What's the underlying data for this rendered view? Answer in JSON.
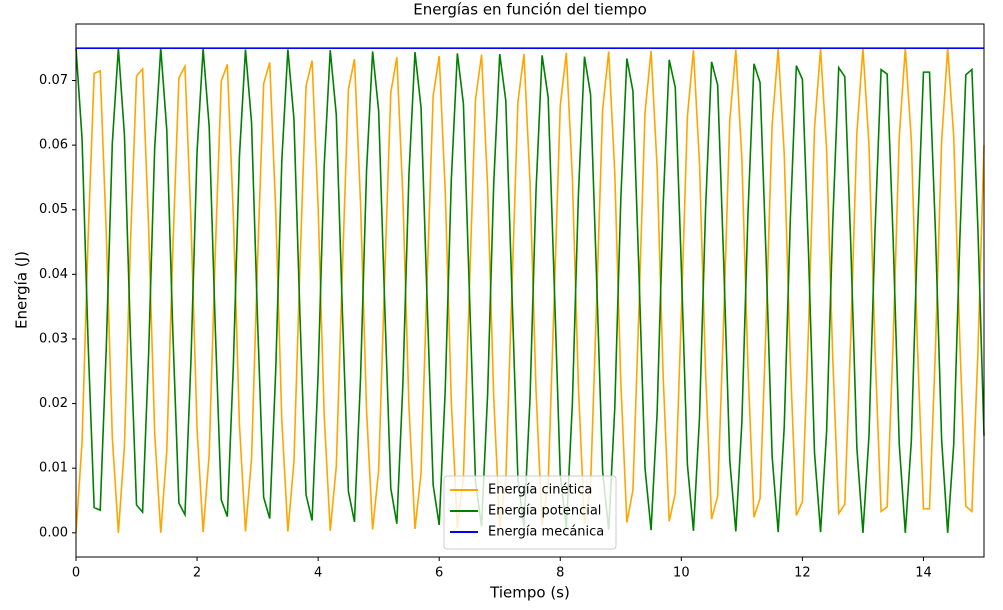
{
  "chart_data": {
    "type": "line",
    "title": "Energías en función del tiempo",
    "xlabel": "Tiempo (s)",
    "ylabel": "Energía (J)",
    "x": [
      0,
      0.1,
      0.2,
      0.3,
      0.4,
      0.5,
      0.6,
      0.7,
      0.8,
      0.9,
      1,
      1.1,
      1.2,
      1.3,
      1.4,
      1.5,
      1.6,
      1.7,
      1.8,
      1.9,
      2,
      2.1,
      2.2,
      2.3,
      2.4,
      2.5,
      2.6,
      2.7,
      2.8,
      2.9,
      3,
      3.1,
      3.2,
      3.3,
      3.4,
      3.5,
      3.6,
      3.7,
      3.8,
      3.9,
      4,
      4.1,
      4.2,
      4.3,
      4.4,
      4.5,
      4.6,
      4.7,
      4.8,
      4.9,
      5,
      5.1,
      5.2,
      5.3,
      5.4,
      5.5,
      5.6,
      5.7,
      5.8,
      5.9,
      6,
      6.1,
      6.2,
      6.3,
      6.4,
      6.5,
      6.6,
      6.7,
      6.8,
      6.9,
      7,
      7.1,
      7.2,
      7.3,
      7.4,
      7.5,
      7.6,
      7.7,
      7.8,
      7.9,
      8,
      8.1,
      8.2,
      8.3,
      8.4,
      8.5,
      8.6,
      8.7,
      8.8,
      8.9,
      9,
      9.1,
      9.2,
      9.3,
      9.4,
      9.5,
      9.6,
      9.7,
      9.8,
      9.9,
      10,
      10.1,
      10.2,
      10.3,
      10.4,
      10.5,
      10.6,
      10.7,
      10.8,
      10.9,
      11,
      11.1,
      11.2,
      11.3,
      11.4,
      11.5,
      11.6,
      11.7,
      11.8,
      11.9,
      12,
      12.1,
      12.2,
      12.3,
      12.4,
      12.5,
      12.6,
      12.7,
      12.8,
      12.9,
      13,
      13.1,
      13.2,
      13.3,
      13.4,
      13.5,
      13.6,
      13.7,
      13.8,
      13.9,
      14,
      14.1,
      14.2,
      14.3,
      14.4,
      14.5,
      14.6,
      14.7,
      14.8,
      14.9,
      15
    ],
    "series": [
      {
        "name": "Energía cinética",
        "color": "#ffa500",
        "values": [
          0,
          0.014,
          0.0456,
          0.0711,
          0.0715,
          0.0464,
          0.0147,
          0,
          0.0134,
          0.0448,
          0.0707,
          0.0718,
          0.0472,
          0.0154,
          0,
          0.0127,
          0.044,
          0.0704,
          0.0722,
          0.0481,
          0.016,
          0.0001,
          0.0121,
          0.0431,
          0.0699,
          0.0725,
          0.0489,
          0.0167,
          0.0002,
          0.0115,
          0.0423,
          0.0695,
          0.0728,
          0.0497,
          0.0174,
          0.0002,
          0.0109,
          0.0415,
          0.0691,
          0.0731,
          0.0504,
          0.0182,
          0.0003,
          0.0103,
          0.0406,
          0.0686,
          0.0733,
          0.0512,
          0.0189,
          0.0005,
          0.0097,
          0.0398,
          0.0681,
          0.0736,
          0.052,
          0.0196,
          0.0006,
          0.0092,
          0.039,
          0.0676,
          0.0738,
          0.0528,
          0.0204,
          0.0008,
          0.0086,
          0.0381,
          0.0671,
          0.074,
          0.0535,
          0.0211,
          0.0009,
          0.0081,
          0.0373,
          0.0666,
          0.0741,
          0.0543,
          0.0219,
          0.0011,
          0.0076,
          0.0364,
          0.0661,
          0.0743,
          0.055,
          0.0226,
          0.0013,
          0.0071,
          0.0356,
          0.0655,
          0.0745,
          0.0558,
          0.0234,
          0.0016,
          0.0066,
          0.0348,
          0.065,
          0.0746,
          0.0565,
          0.0242,
          0.0018,
          0.0061,
          0.0339,
          0.0644,
          0.0747,
          0.0572,
          0.025,
          0.0021,
          0.0057,
          0.0331,
          0.0638,
          0.0748,
          0.0579,
          0.0258,
          0.0024,
          0.0053,
          0.0323,
          0.0632,
          0.0749,
          0.0586,
          0.0266,
          0.0027,
          0.0048,
          0.0314,
          0.0626,
          0.0749,
          0.0593,
          0.0274,
          0.003,
          0.0044,
          0.0306,
          0.0619,
          0.075,
          0.06,
          0.0282,
          0.0033,
          0.004,
          0.0298,
          0.0613,
          0.075,
          0.0607,
          0.029,
          0.0037,
          0.0037,
          0.029,
          0.0606,
          0.075,
          0.0613,
          0.0298,
          0.0041,
          0.0033,
          0.0281,
          0.06
        ]
      },
      {
        "name": "Energía potencial",
        "color": "#008000",
        "values": [
          0.075,
          0.061,
          0.0294,
          0.0039,
          0.0035,
          0.0286,
          0.0603,
          0.075,
          0.0616,
          0.0302,
          0.0043,
          0.0032,
          0.0278,
          0.0596,
          0.075,
          0.0623,
          0.031,
          0.0046,
          0.0028,
          0.0269,
          0.059,
          0.0749,
          0.0629,
          0.0319,
          0.0051,
          0.0025,
          0.0261,
          0.0583,
          0.0748,
          0.0635,
          0.0327,
          0.0055,
          0.0022,
          0.0253,
          0.0576,
          0.0748,
          0.0641,
          0.0335,
          0.0059,
          0.0019,
          0.0246,
          0.0568,
          0.0747,
          0.0647,
          0.0344,
          0.0064,
          0.0017,
          0.0238,
          0.0561,
          0.0745,
          0.0653,
          0.0352,
          0.0069,
          0.0014,
          0.023,
          0.0554,
          0.0744,
          0.0658,
          0.036,
          0.0074,
          0.0012,
          0.0222,
          0.0546,
          0.0742,
          0.0664,
          0.0369,
          0.0079,
          0.001,
          0.0215,
          0.0539,
          0.0741,
          0.0669,
          0.0377,
          0.0084,
          0.0009,
          0.0207,
          0.0531,
          0.0739,
          0.0674,
          0.0386,
          0.0089,
          0.0007,
          0.02,
          0.0524,
          0.0737,
          0.0679,
          0.0394,
          0.0095,
          0.0005,
          0.0192,
          0.0516,
          0.0734,
          0.0684,
          0.0402,
          0.01,
          0.0004,
          0.0185,
          0.0508,
          0.0732,
          0.0689,
          0.0411,
          0.0106,
          0.0003,
          0.0178,
          0.05,
          0.0729,
          0.0693,
          0.0419,
          0.0112,
          0.0002,
          0.0171,
          0.0492,
          0.0726,
          0.0697,
          0.0427,
          0.0118,
          0.0001,
          0.0164,
          0.0484,
          0.0723,
          0.0702,
          0.0436,
          0.0124,
          0.0001,
          0.0157,
          0.0476,
          0.072,
          0.0706,
          0.0444,
          0.0131,
          0,
          0.015,
          0.0468,
          0.0717,
          0.071,
          0.0452,
          0.0137,
          0,
          0.0143,
          0.046,
          0.0713,
          0.0713,
          0.046,
          0.0144,
          0,
          0.0137,
          0.0452,
          0.0709,
          0.0717,
          0.0469,
          0.015
        ]
      },
      {
        "name": "Energía mecánica",
        "color": "#0000ff",
        "values": [
          0.075,
          0.075,
          0.075,
          0.075,
          0.075,
          0.075,
          0.075,
          0.075,
          0.075,
          0.075,
          0.075,
          0.075,
          0.075,
          0.075,
          0.075,
          0.075,
          0.075,
          0.075,
          0.075,
          0.075,
          0.075,
          0.075,
          0.075,
          0.075,
          0.075,
          0.075,
          0.075,
          0.075,
          0.075,
          0.075,
          0.075,
          0.075,
          0.075,
          0.075,
          0.075,
          0.075,
          0.075,
          0.075,
          0.075,
          0.075,
          0.075,
          0.075,
          0.075,
          0.075,
          0.075,
          0.075,
          0.075,
          0.075,
          0.075,
          0.075,
          0.075,
          0.075,
          0.075,
          0.075,
          0.075,
          0.075,
          0.075,
          0.075,
          0.075,
          0.075,
          0.075,
          0.075,
          0.075,
          0.075,
          0.075,
          0.075,
          0.075,
          0.075,
          0.075,
          0.075,
          0.075,
          0.075,
          0.075,
          0.075,
          0.075,
          0.075,
          0.075,
          0.075,
          0.075,
          0.075,
          0.075,
          0.075,
          0.075,
          0.075,
          0.075,
          0.075,
          0.075,
          0.075,
          0.075,
          0.075,
          0.075,
          0.075,
          0.075,
          0.075,
          0.075,
          0.075,
          0.075,
          0.075,
          0.075,
          0.075,
          0.075,
          0.075,
          0.075,
          0.075,
          0.075,
          0.075,
          0.075,
          0.075,
          0.075,
          0.075,
          0.075,
          0.075,
          0.075,
          0.075,
          0.075,
          0.075,
          0.075,
          0.075,
          0.075,
          0.075,
          0.075,
          0.075,
          0.075,
          0.075,
          0.075,
          0.075,
          0.075,
          0.075,
          0.075,
          0.075,
          0.075,
          0.075,
          0.075,
          0.075,
          0.075,
          0.075,
          0.075,
          0.075,
          0.075,
          0.075,
          0.075,
          0.075,
          0.075,
          0.075,
          0.075,
          0.075,
          0.075,
          0.075,
          0.075,
          0.075,
          0.075
        ]
      }
    ],
    "xlim": [
      0,
      15
    ],
    "xticks": [
      0,
      2,
      4,
      6,
      8,
      10,
      12,
      14
    ],
    "ylim": [
      -0.00375,
      0.07875
    ],
    "yticks": [
      {
        "value": 0,
        "label": "0.00"
      },
      {
        "value": 0.01,
        "label": "0.01"
      },
      {
        "value": 0.02,
        "label": "0.02"
      },
      {
        "value": 0.03,
        "label": "0.03"
      },
      {
        "value": 0.04,
        "label": "0.04"
      },
      {
        "value": 0.05,
        "label": "0.05"
      },
      {
        "value": 0.06,
        "label": "0.06"
      },
      {
        "value": 0.07,
        "label": "0.07"
      }
    ],
    "legend": "lower center"
  }
}
